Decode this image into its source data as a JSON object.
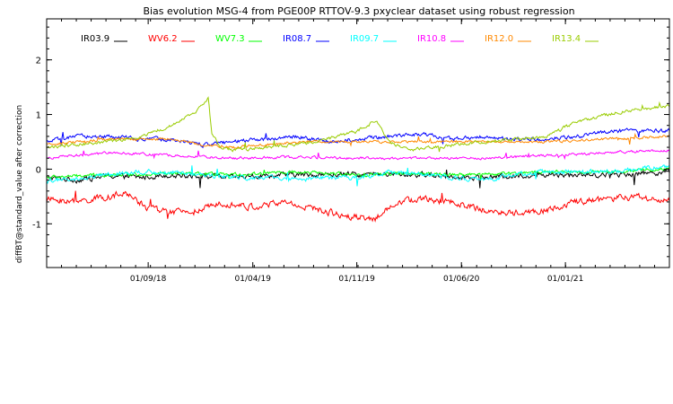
{
  "chart_data": {
    "type": "line",
    "title": "Bias evolution MSG-4 from PGE00P RTTOV-9.3 pxyclear dataset using robust regression",
    "xlabel": "",
    "ylabel": "diffBT@standard_value after correction",
    "ylim": [
      -1.8,
      2.75
    ],
    "y_ticks": [
      -1,
      0,
      1,
      2
    ],
    "x_tick_labels": [
      "01/09/18",
      "01/04/19",
      "01/11/19",
      "01/06/20",
      "01/01/21"
    ],
    "x_tick_positions": [
      0.163,
      0.331,
      0.498,
      0.666,
      0.833
    ],
    "grid": false,
    "legend_placement": "top",
    "series": [
      {
        "name": "IR03.9",
        "color": "#000000",
        "anchors": [
          [
            0,
            -0.15
          ],
          [
            0.05,
            -0.2
          ],
          [
            0.1,
            -0.12
          ],
          [
            0.15,
            -0.15
          ],
          [
            0.2,
            -0.1
          ],
          [
            0.3,
            -0.15
          ],
          [
            0.4,
            -0.1
          ],
          [
            0.5,
            -0.1
          ],
          [
            0.6,
            -0.1
          ],
          [
            0.7,
            -0.15
          ],
          [
            0.8,
            -0.1
          ],
          [
            0.9,
            -0.1
          ],
          [
            1.0,
            -0.05
          ]
        ],
        "noise": 0.08
      },
      {
        "name": "WV6.2",
        "color": "#ff0000",
        "anchors": [
          [
            0,
            -0.55
          ],
          [
            0.05,
            -0.6
          ],
          [
            0.1,
            -0.5
          ],
          [
            0.13,
            -0.45
          ],
          [
            0.16,
            -0.7
          ],
          [
            0.2,
            -0.8
          ],
          [
            0.25,
            -0.75
          ],
          [
            0.28,
            -0.6
          ],
          [
            0.33,
            -0.7
          ],
          [
            0.38,
            -0.6
          ],
          [
            0.42,
            -0.7
          ],
          [
            0.48,
            -0.85
          ],
          [
            0.53,
            -0.9
          ],
          [
            0.56,
            -0.6
          ],
          [
            0.6,
            -0.55
          ],
          [
            0.65,
            -0.6
          ],
          [
            0.7,
            -0.75
          ],
          [
            0.75,
            -0.8
          ],
          [
            0.8,
            -0.75
          ],
          [
            0.85,
            -0.6
          ],
          [
            0.9,
            -0.55
          ],
          [
            0.95,
            -0.5
          ],
          [
            1.0,
            -0.6
          ]
        ],
        "noise": 0.1
      },
      {
        "name": "WV7.3",
        "color": "#00ff00",
        "anchors": [
          [
            0,
            -0.15
          ],
          [
            0.1,
            -0.1
          ],
          [
            0.2,
            -0.08
          ],
          [
            0.3,
            -0.1
          ],
          [
            0.4,
            -0.05
          ],
          [
            0.5,
            -0.1
          ],
          [
            0.6,
            -0.08
          ],
          [
            0.7,
            -0.1
          ],
          [
            0.8,
            -0.05
          ],
          [
            0.9,
            -0.05
          ],
          [
            1.0,
            0.0
          ]
        ],
        "noise": 0.05
      },
      {
        "name": "IR08.7",
        "color": "#0000ff",
        "anchors": [
          [
            0,
            0.5
          ],
          [
            0.05,
            0.6
          ],
          [
            0.1,
            0.6
          ],
          [
            0.15,
            0.55
          ],
          [
            0.2,
            0.55
          ],
          [
            0.25,
            0.45
          ],
          [
            0.3,
            0.5
          ],
          [
            0.35,
            0.55
          ],
          [
            0.4,
            0.6
          ],
          [
            0.45,
            0.5
          ],
          [
            0.5,
            0.55
          ],
          [
            0.55,
            0.6
          ],
          [
            0.6,
            0.65
          ],
          [
            0.65,
            0.55
          ],
          [
            0.7,
            0.6
          ],
          [
            0.75,
            0.55
          ],
          [
            0.8,
            0.55
          ],
          [
            0.85,
            0.6
          ],
          [
            0.9,
            0.7
          ],
          [
            0.95,
            0.7
          ],
          [
            1.0,
            0.7
          ]
        ],
        "noise": 0.06
      },
      {
        "name": "IR09.7",
        "color": "#00ffff",
        "anchors": [
          [
            0,
            -0.2
          ],
          [
            0.05,
            -0.2
          ],
          [
            0.1,
            -0.1
          ],
          [
            0.15,
            -0.05
          ],
          [
            0.2,
            -0.05
          ],
          [
            0.25,
            -0.1
          ],
          [
            0.3,
            -0.15
          ],
          [
            0.35,
            -0.15
          ],
          [
            0.4,
            -0.2
          ],
          [
            0.45,
            -0.15
          ],
          [
            0.5,
            -0.15
          ],
          [
            0.55,
            -0.05
          ],
          [
            0.6,
            -0.1
          ],
          [
            0.65,
            -0.15
          ],
          [
            0.7,
            -0.2
          ],
          [
            0.75,
            -0.1
          ],
          [
            0.8,
            -0.05
          ],
          [
            0.9,
            -0.05
          ],
          [
            1.0,
            0.05
          ]
        ],
        "noise": 0.07
      },
      {
        "name": "IR10.8",
        "color": "#ff00ff",
        "anchors": [
          [
            0,
            0.2
          ],
          [
            0.05,
            0.25
          ],
          [
            0.1,
            0.3
          ],
          [
            0.15,
            0.28
          ],
          [
            0.2,
            0.25
          ],
          [
            0.3,
            0.2
          ],
          [
            0.4,
            0.22
          ],
          [
            0.5,
            0.2
          ],
          [
            0.6,
            0.2
          ],
          [
            0.7,
            0.2
          ],
          [
            0.8,
            0.25
          ],
          [
            0.9,
            0.3
          ],
          [
            1.0,
            0.35
          ]
        ],
        "noise": 0.04
      },
      {
        "name": "IR12.0",
        "color": "#ff8800",
        "anchors": [
          [
            0,
            0.45
          ],
          [
            0.1,
            0.55
          ],
          [
            0.2,
            0.55
          ],
          [
            0.25,
            0.45
          ],
          [
            0.3,
            0.4
          ],
          [
            0.4,
            0.5
          ],
          [
            0.5,
            0.5
          ],
          [
            0.6,
            0.5
          ],
          [
            0.7,
            0.5
          ],
          [
            0.8,
            0.5
          ],
          [
            0.9,
            0.55
          ],
          [
            1.0,
            0.6
          ]
        ],
        "noise": 0.04
      },
      {
        "name": "IR13.4",
        "color": "#99cc00",
        "anchors": [
          [
            0,
            0.4
          ],
          [
            0.05,
            0.45
          ],
          [
            0.1,
            0.5
          ],
          [
            0.15,
            0.6
          ],
          [
            0.2,
            0.8
          ],
          [
            0.24,
            1.05
          ],
          [
            0.26,
            1.3
          ],
          [
            0.265,
            0.65
          ],
          [
            0.28,
            0.4
          ],
          [
            0.3,
            0.35
          ],
          [
            0.35,
            0.4
          ],
          [
            0.4,
            0.45
          ],
          [
            0.45,
            0.55
          ],
          [
            0.5,
            0.7
          ],
          [
            0.53,
            0.9
          ],
          [
            0.55,
            0.5
          ],
          [
            0.58,
            0.35
          ],
          [
            0.62,
            0.4
          ],
          [
            0.7,
            0.5
          ],
          [
            0.75,
            0.55
          ],
          [
            0.8,
            0.6
          ],
          [
            0.85,
            0.85
          ],
          [
            0.9,
            1.0
          ],
          [
            0.95,
            1.1
          ],
          [
            1.0,
            1.15
          ]
        ],
        "noise": 0.05
      }
    ]
  }
}
